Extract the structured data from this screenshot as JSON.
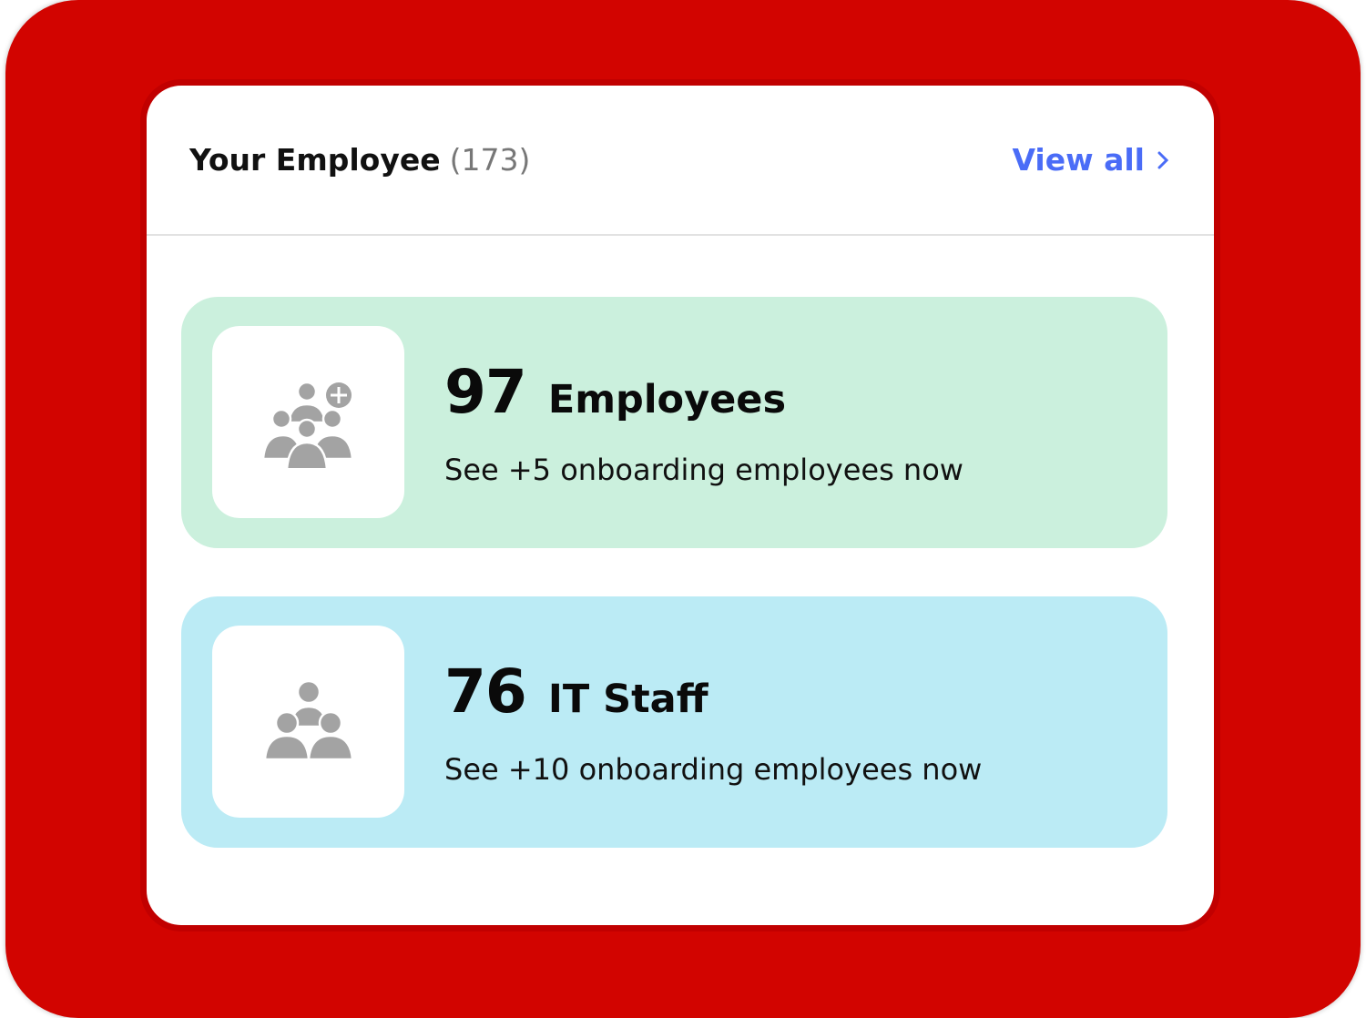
{
  "header": {
    "title": "Your Employee",
    "count": "(173)",
    "view_all": "View all"
  },
  "tiles": [
    {
      "number": "97",
      "label": "Employees",
      "subtitle": "See +5 onboarding employees now",
      "icon": "add-group-icon",
      "color": "#cbf0dd"
    },
    {
      "number": "76",
      "label": "IT Staff",
      "subtitle": "See +10 onboarding employees now",
      "icon": "group-icon",
      "color": "#bbebf5"
    }
  ],
  "colors": {
    "frame": "#d20400",
    "accent": "#4a6cf7",
    "icon": "#a3a3a3"
  }
}
